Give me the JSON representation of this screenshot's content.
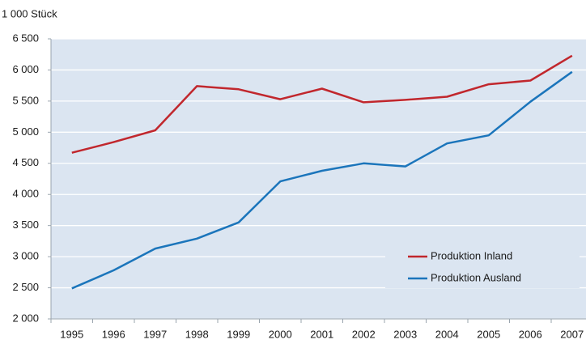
{
  "chart_data": {
    "type": "line",
    "y_label": "1 000 Stück",
    "categories": [
      "1995",
      "1996",
      "1997",
      "1998",
      "1999",
      "2000",
      "2001",
      "2002",
      "2003",
      "2004",
      "2005",
      "2006",
      "2007"
    ],
    "series": [
      {
        "name": "Produktion Inland",
        "color": "#c1272d",
        "values": [
          4670,
          4840,
          5030,
          5740,
          5690,
          5530,
          5700,
          5480,
          5520,
          5570,
          5770,
          5830,
          6230
        ]
      },
      {
        "name": "Produktion Ausland",
        "color": "#1b75bb",
        "values": [
          2490,
          2780,
          3130,
          3290,
          3550,
          4210,
          4380,
          4500,
          4450,
          4820,
          4950,
          5490,
          5970
        ]
      }
    ],
    "ylim": [
      2000,
      6500
    ],
    "yticks": [
      {
        "value": 2000,
        "label": "2 000"
      },
      {
        "value": 2500,
        "label": "2 500"
      },
      {
        "value": 3000,
        "label": "3 000"
      },
      {
        "value": 3500,
        "label": "3 500"
      },
      {
        "value": 4000,
        "label": "4 000"
      },
      {
        "value": 4500,
        "label": "4 500"
      },
      {
        "value": 5000,
        "label": "5 000"
      },
      {
        "value": 5500,
        "label": "5 500"
      },
      {
        "value": 6000,
        "label": "6 000"
      },
      {
        "value": 6500,
        "label": "6 500"
      }
    ],
    "grid": true,
    "legend_position": "lower right"
  }
}
